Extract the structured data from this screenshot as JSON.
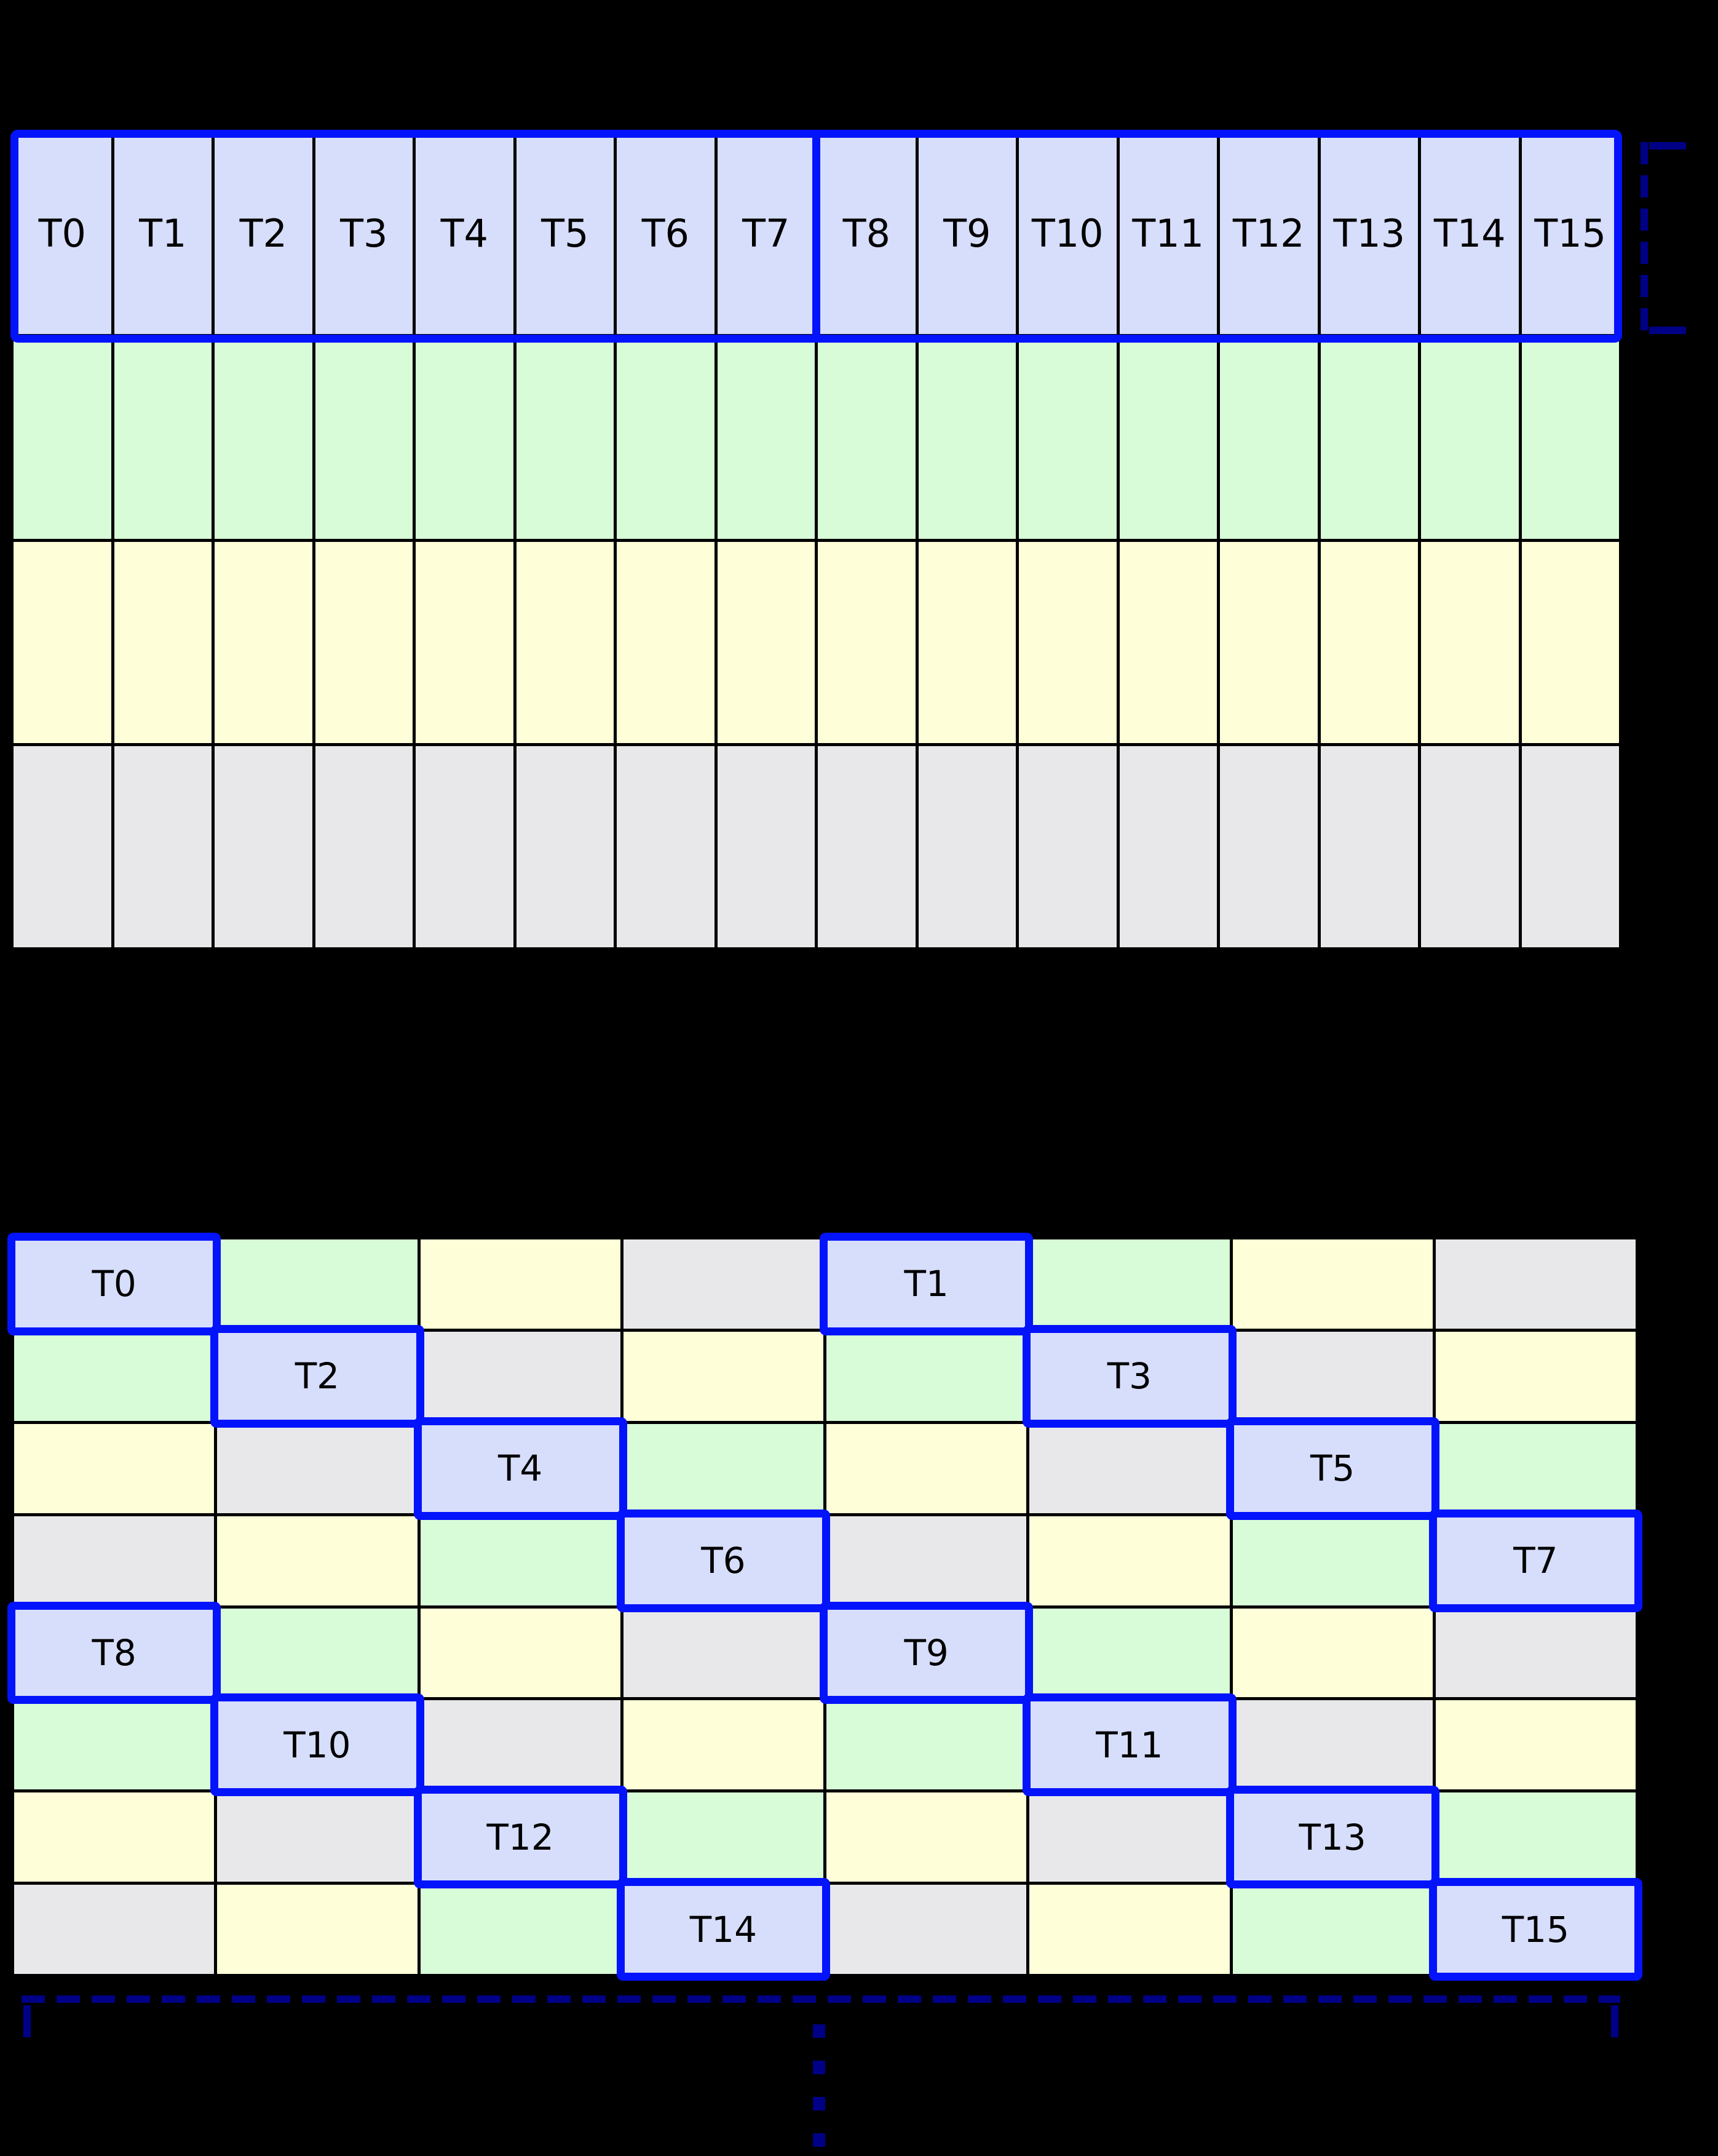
{
  "colors": {
    "background": "#000000",
    "grid_line": "#000000",
    "thread_fill": "#d7defb",
    "green_fill": "#d8fcd8",
    "yellow_fill": "#fefed8",
    "gray_fill": "#e8e8ea",
    "highlight_border": "#0313fc",
    "bracket": "#000087",
    "label_text": "#000000"
  },
  "top_grid": {
    "columns": 16,
    "rows": 4,
    "thread_row": {
      "fill": "thread",
      "labels": [
        "T0",
        "T1",
        "T2",
        "T3",
        "T4",
        "T5",
        "T6",
        "T7",
        "T8",
        "T9",
        "T10",
        "T11",
        "T12",
        "T13",
        "T14",
        "T15"
      ]
    },
    "data_rows": [
      {
        "fill": "green"
      },
      {
        "fill": "yellow"
      },
      {
        "fill": "gray"
      }
    ],
    "thread_groups": [
      {
        "name": "threads-0-7",
        "start": 0,
        "end": 7
      },
      {
        "name": "threads-8-15",
        "start": 8,
        "end": 15
      }
    ]
  },
  "bottom_grid": {
    "columns": 8,
    "rows": 8,
    "cells": [
      [
        {
          "fill": "thread",
          "label": "T0"
        },
        {
          "fill": "green"
        },
        {
          "fill": "yellow"
        },
        {
          "fill": "gray"
        },
        {
          "fill": "thread",
          "label": "T1"
        },
        {
          "fill": "green"
        },
        {
          "fill": "yellow"
        },
        {
          "fill": "gray"
        }
      ],
      [
        {
          "fill": "green"
        },
        {
          "fill": "thread",
          "label": "T2"
        },
        {
          "fill": "gray"
        },
        {
          "fill": "yellow"
        },
        {
          "fill": "green"
        },
        {
          "fill": "thread",
          "label": "T3"
        },
        {
          "fill": "gray"
        },
        {
          "fill": "yellow"
        }
      ],
      [
        {
          "fill": "yellow"
        },
        {
          "fill": "gray"
        },
        {
          "fill": "thread",
          "label": "T4"
        },
        {
          "fill": "green"
        },
        {
          "fill": "yellow"
        },
        {
          "fill": "gray"
        },
        {
          "fill": "thread",
          "label": "T5"
        },
        {
          "fill": "green"
        }
      ],
      [
        {
          "fill": "gray"
        },
        {
          "fill": "yellow"
        },
        {
          "fill": "green"
        },
        {
          "fill": "thread",
          "label": "T6"
        },
        {
          "fill": "gray"
        },
        {
          "fill": "yellow"
        },
        {
          "fill": "green"
        },
        {
          "fill": "thread",
          "label": "T7"
        }
      ],
      [
        {
          "fill": "thread",
          "label": "T8"
        },
        {
          "fill": "green"
        },
        {
          "fill": "yellow"
        },
        {
          "fill": "gray"
        },
        {
          "fill": "thread",
          "label": "T9"
        },
        {
          "fill": "green"
        },
        {
          "fill": "yellow"
        },
        {
          "fill": "gray"
        }
      ],
      [
        {
          "fill": "green"
        },
        {
          "fill": "thread",
          "label": "T10"
        },
        {
          "fill": "gray"
        },
        {
          "fill": "yellow"
        },
        {
          "fill": "green"
        },
        {
          "fill": "thread",
          "label": "T11"
        },
        {
          "fill": "gray"
        },
        {
          "fill": "yellow"
        }
      ],
      [
        {
          "fill": "yellow"
        },
        {
          "fill": "gray"
        },
        {
          "fill": "thread",
          "label": "T12"
        },
        {
          "fill": "green"
        },
        {
          "fill": "yellow"
        },
        {
          "fill": "gray"
        },
        {
          "fill": "thread",
          "label": "T13"
        },
        {
          "fill": "green"
        }
      ],
      [
        {
          "fill": "gray"
        },
        {
          "fill": "yellow"
        },
        {
          "fill": "green"
        },
        {
          "fill": "thread",
          "label": "T14"
        },
        {
          "fill": "gray"
        },
        {
          "fill": "yellow"
        },
        {
          "fill": "green"
        },
        {
          "fill": "thread",
          "label": "T15"
        }
      ]
    ]
  }
}
